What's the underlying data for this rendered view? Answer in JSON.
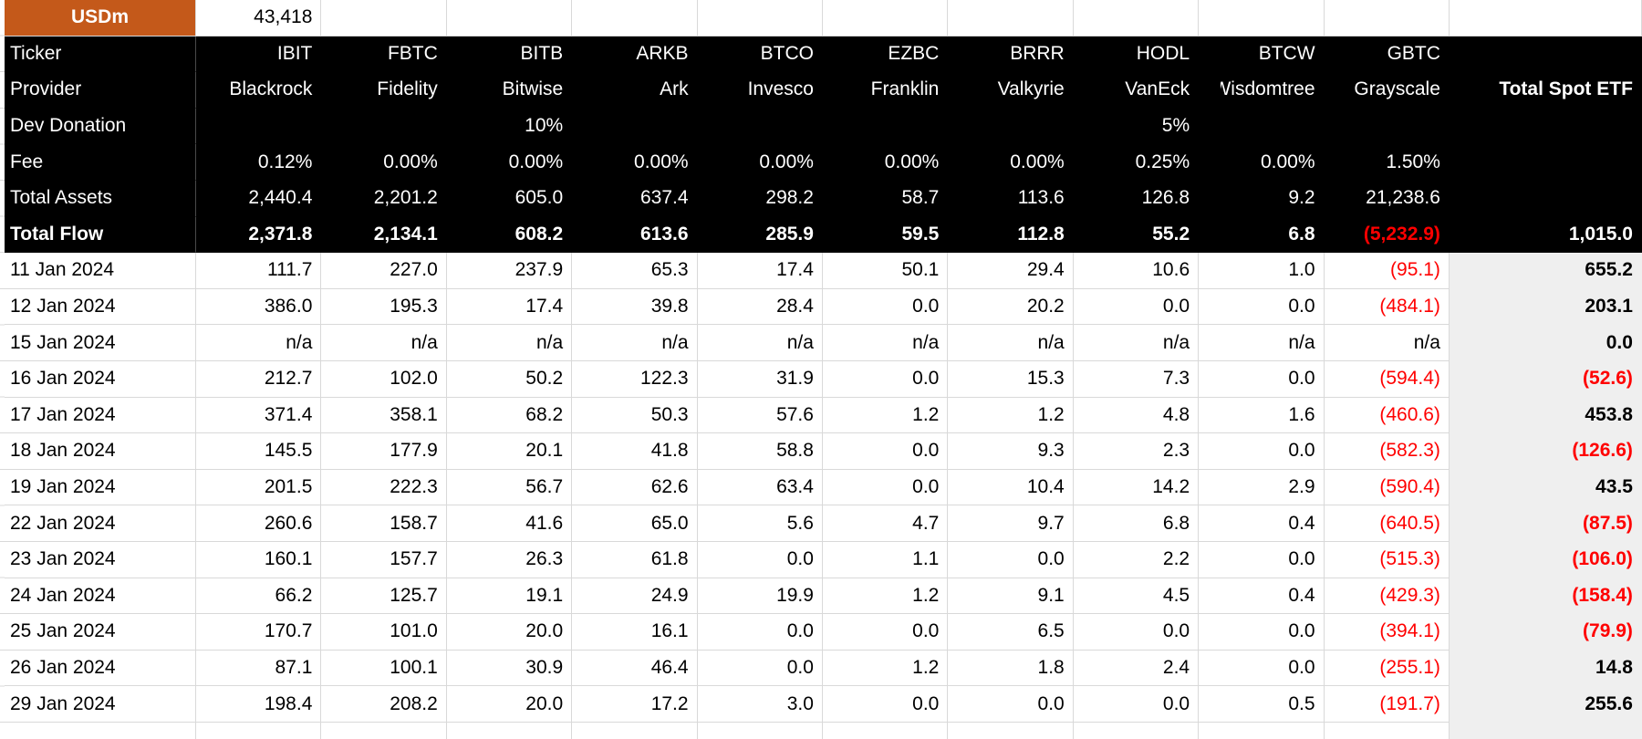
{
  "title_cell": {
    "label": "USDm",
    "value": "43,418"
  },
  "row_labels": {
    "ticker": "Ticker",
    "provider": "Provider",
    "dev": "Dev Donation",
    "fee": "Fee",
    "assets": "Total Assets",
    "flow": "Total Flow"
  },
  "etfs": [
    {
      "ticker": "IBIT",
      "provider": "Blackrock",
      "dev_donation": "",
      "fee": "0.12%",
      "total_assets": "2,440.4",
      "total_flow": "2,371.8"
    },
    {
      "ticker": "FBTC",
      "provider": "Fidelity",
      "dev_donation": "",
      "fee": "0.00%",
      "total_assets": "2,201.2",
      "total_flow": "2,134.1"
    },
    {
      "ticker": "BITB",
      "provider": "Bitwise",
      "dev_donation": "10%",
      "fee": "0.00%",
      "total_assets": "605.0",
      "total_flow": "608.2"
    },
    {
      "ticker": "ARKB",
      "provider": "Ark",
      "dev_donation": "",
      "fee": "0.00%",
      "total_assets": "637.4",
      "total_flow": "613.6"
    },
    {
      "ticker": "BTCO",
      "provider": "Invesco",
      "dev_donation": "",
      "fee": "0.00%",
      "total_assets": "298.2",
      "total_flow": "285.9"
    },
    {
      "ticker": "EZBC",
      "provider": "Franklin",
      "dev_donation": "",
      "fee": "0.00%",
      "total_assets": "58.7",
      "total_flow": "59.5"
    },
    {
      "ticker": "BRRR",
      "provider": "Valkyrie",
      "dev_donation": "",
      "fee": "0.00%",
      "total_assets": "113.6",
      "total_flow": "112.8"
    },
    {
      "ticker": "HODL",
      "provider": "VanEck",
      "dev_donation": "5%",
      "fee": "0.25%",
      "total_assets": "126.8",
      "total_flow": "55.2"
    },
    {
      "ticker": "BTCW",
      "provider": "Wisdomtree",
      "dev_donation": "",
      "fee": "0.00%",
      "total_assets": "9.2",
      "total_flow": "6.8"
    },
    {
      "ticker": "GBTC",
      "provider": "Grayscale",
      "dev_donation": "",
      "fee": "1.50%",
      "total_assets": "21,238.6",
      "total_flow": "(5,232.9)"
    }
  ],
  "total_column": {
    "header": "Total Spot ETF",
    "total_flow": "1,015.0"
  },
  "daily_rows": [
    {
      "date": "11 Jan 2024",
      "values": [
        "111.7",
        "227.0",
        "237.9",
        "65.3",
        "17.4",
        "50.1",
        "29.4",
        "10.6",
        "1.0",
        "(95.1)"
      ],
      "total": "655.2",
      "has_note": true
    },
    {
      "date": "12 Jan 2024",
      "values": [
        "386.0",
        "195.3",
        "17.4",
        "39.8",
        "28.4",
        "0.0",
        "20.2",
        "0.0",
        "0.0",
        "(484.1)"
      ],
      "total": "203.1",
      "has_note": true
    },
    {
      "date": "15 Jan 2024",
      "values": [
        "n/a",
        "n/a",
        "n/a",
        "n/a",
        "n/a",
        "n/a",
        "n/a",
        "n/a",
        "n/a",
        "n/a"
      ],
      "total": "0.0",
      "has_note": false
    },
    {
      "date": "16 Jan 2024",
      "values": [
        "212.7",
        "102.0",
        "50.2",
        "122.3",
        "31.9",
        "0.0",
        "15.3",
        "7.3",
        "0.0",
        "(594.4)"
      ],
      "total": "(52.6)",
      "has_note": false
    },
    {
      "date": "17 Jan 2024",
      "values": [
        "371.4",
        "358.1",
        "68.2",
        "50.3",
        "57.6",
        "1.2",
        "1.2",
        "4.8",
        "1.6",
        "(460.6)"
      ],
      "total": "453.8",
      "has_note": false
    },
    {
      "date": "18 Jan 2024",
      "values": [
        "145.5",
        "177.9",
        "20.1",
        "41.8",
        "58.8",
        "0.0",
        "9.3",
        "2.3",
        "0.0",
        "(582.3)"
      ],
      "total": "(126.6)",
      "has_note": false
    },
    {
      "date": "19 Jan 2024",
      "values": [
        "201.5",
        "222.3",
        "56.7",
        "62.6",
        "63.4",
        "0.0",
        "10.4",
        "14.2",
        "2.9",
        "(590.4)"
      ],
      "total": "43.5",
      "has_note": false
    },
    {
      "date": "22 Jan 2024",
      "values": [
        "260.6",
        "158.7",
        "41.6",
        "65.0",
        "5.6",
        "4.7",
        "9.7",
        "6.8",
        "0.4",
        "(640.5)"
      ],
      "total": "(87.5)",
      "has_note": false
    },
    {
      "date": "23 Jan 2024",
      "values": [
        "160.1",
        "157.7",
        "26.3",
        "61.8",
        "0.0",
        "1.1",
        "0.0",
        "2.2",
        "0.0",
        "(515.3)"
      ],
      "total": "(106.0)",
      "has_note": false
    },
    {
      "date": "24 Jan 2024",
      "values": [
        "66.2",
        "125.7",
        "19.1",
        "24.9",
        "19.9",
        "1.2",
        "9.1",
        "4.5",
        "0.4",
        "(429.3)"
      ],
      "total": "(158.4)",
      "has_note": false
    },
    {
      "date": "25 Jan 2024",
      "values": [
        "170.7",
        "101.0",
        "20.0",
        "16.1",
        "0.0",
        "0.0",
        "6.5",
        "0.0",
        "0.0",
        "(394.1)"
      ],
      "total": "(79.9)",
      "has_note": false
    },
    {
      "date": "26 Jan 2024",
      "values": [
        "87.1",
        "100.1",
        "30.9",
        "46.4",
        "0.0",
        "1.2",
        "1.8",
        "2.4",
        "0.0",
        "(255.1)"
      ],
      "total": "14.8",
      "has_note": false
    },
    {
      "date": "29 Jan 2024",
      "values": [
        "198.4",
        "208.2",
        "20.0",
        "17.2",
        "3.0",
        "0.0",
        "0.0",
        "0.0",
        "0.5",
        "(191.7)"
      ],
      "total": "255.6",
      "has_note": false
    }
  ],
  "colors": {
    "accent_orange": "#C4591A",
    "negative_red": "#FF0000",
    "note_flag_green": "#1E7E2E",
    "total_column_bg": "#EFEFEF",
    "header_bg": "#000000",
    "gridline": "#D9D9D9"
  }
}
